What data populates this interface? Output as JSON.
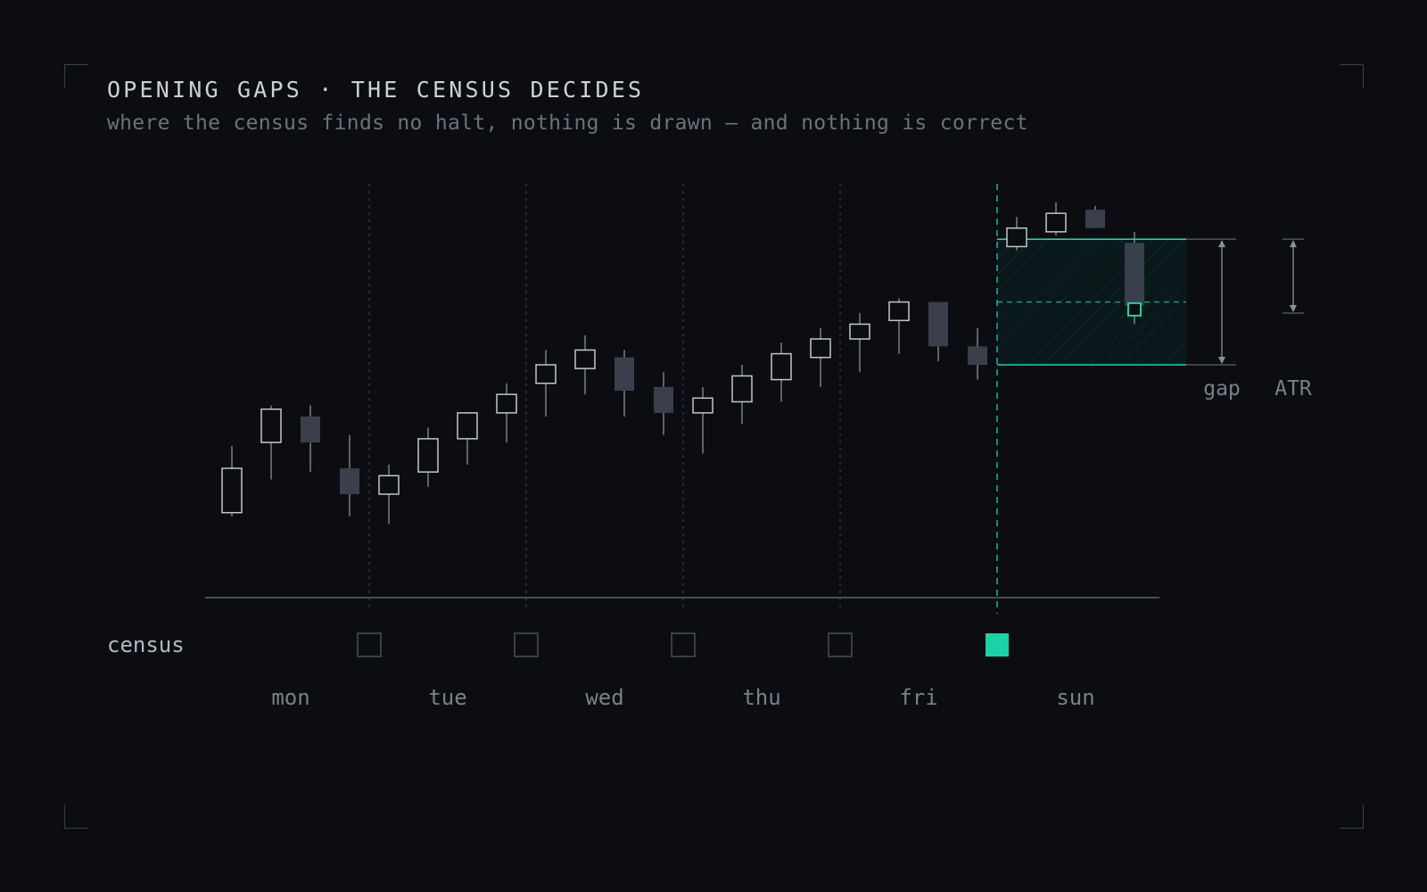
{
  "title": "OPENING GAPS · THE CENSUS DECIDES",
  "subtitle": "where the census finds no halt, nothing is drawn — and nothing is correct",
  "colors": {
    "background": "#0b0d11",
    "accent": "#19d3a8",
    "bull_outline": "#c2c6cc",
    "bear_fill": "#3a404b",
    "axis": "#5d636c",
    "muted_text": "#7a808a"
  },
  "chart_data": {
    "type": "candlestick",
    "title": "OPENING GAPS · THE CENSUS DECIDES",
    "subtitle": "where the census finds no halt, nothing is drawn — and nothing is correct",
    "categories": [
      "mon",
      "tue",
      "wed",
      "thu",
      "fri",
      "sun"
    ],
    "row_label": "census",
    "census": [
      false,
      false,
      false,
      false,
      true
    ],
    "candles": [
      {
        "session": "mon",
        "open": 61.5,
        "high": 70.5,
        "low": 61.0,
        "close": 67.5
      },
      {
        "session": "mon",
        "open": 71.0,
        "high": 76.0,
        "low": 66.0,
        "close": 75.5
      },
      {
        "session": "mon",
        "open": 74.5,
        "high": 76.0,
        "low": 67.0,
        "close": 71.0
      },
      {
        "session": "mon",
        "open": 67.5,
        "high": 72.0,
        "low": 61.0,
        "close": 64.0
      },
      {
        "session": "tue",
        "open": 64.0,
        "high": 68.0,
        "low": 60.0,
        "close": 66.5
      },
      {
        "session": "tue",
        "open": 67.0,
        "high": 73.0,
        "low": 65.0,
        "close": 71.5
      },
      {
        "session": "tue",
        "open": 71.5,
        "high": 75.0,
        "low": 68.0,
        "close": 75.0
      },
      {
        "session": "tue",
        "open": 75.0,
        "high": 79.0,
        "low": 71.0,
        "close": 77.5
      },
      {
        "session": "wed",
        "open": 79.0,
        "high": 83.5,
        "low": 74.5,
        "close": 81.5
      },
      {
        "session": "wed",
        "open": 81.0,
        "high": 85.5,
        "low": 77.5,
        "close": 83.5
      },
      {
        "session": "wed",
        "open": 82.5,
        "high": 83.5,
        "low": 74.5,
        "close": 78.0
      },
      {
        "session": "wed",
        "open": 78.5,
        "high": 80.5,
        "low": 72.0,
        "close": 75.0
      },
      {
        "session": "thu",
        "open": 75.0,
        "high": 78.5,
        "low": 69.5,
        "close": 77.0
      },
      {
        "session": "thu",
        "open": 76.5,
        "high": 81.5,
        "low": 73.5,
        "close": 80.0
      },
      {
        "session": "thu",
        "open": 79.5,
        "high": 84.5,
        "low": 76.5,
        "close": 83.0
      },
      {
        "session": "thu",
        "open": 82.5,
        "high": 86.5,
        "low": 78.5,
        "close": 85.0
      },
      {
        "session": "fri",
        "open": 85.0,
        "high": 88.5,
        "low": 80.5,
        "close": 87.0
      },
      {
        "session": "fri",
        "open": 87.5,
        "high": 90.5,
        "low": 83.0,
        "close": 90.0
      },
      {
        "session": "fri",
        "open": 90.0,
        "high": 90.0,
        "low": 82.0,
        "close": 84.0
      },
      {
        "session": "fri",
        "open": 84.0,
        "high": 86.5,
        "low": 79.5,
        "close": 81.5
      },
      {
        "session": "sun",
        "open": 97.5,
        "high": 101.5,
        "low": 97.0,
        "close": 100.0
      },
      {
        "session": "sun",
        "open": 99.5,
        "high": 103.5,
        "low": 99.0,
        "close": 102.0
      },
      {
        "session": "sun",
        "open": 102.5,
        "high": 103.0,
        "low": 100.0,
        "close": 100.0
      },
      {
        "session": "sun",
        "open": 98.0,
        "high": 99.5,
        "low": 87.0,
        "close": 89.5
      }
    ],
    "gap": {
      "from": 81.5,
      "to": 98.5,
      "midpoint": 90.0,
      "label": "gap"
    },
    "fill_marker": 89.0,
    "atr": {
      "value": 10.0,
      "label": "ATR"
    },
    "ylim": [
      50,
      106
    ],
    "grid": false
  }
}
